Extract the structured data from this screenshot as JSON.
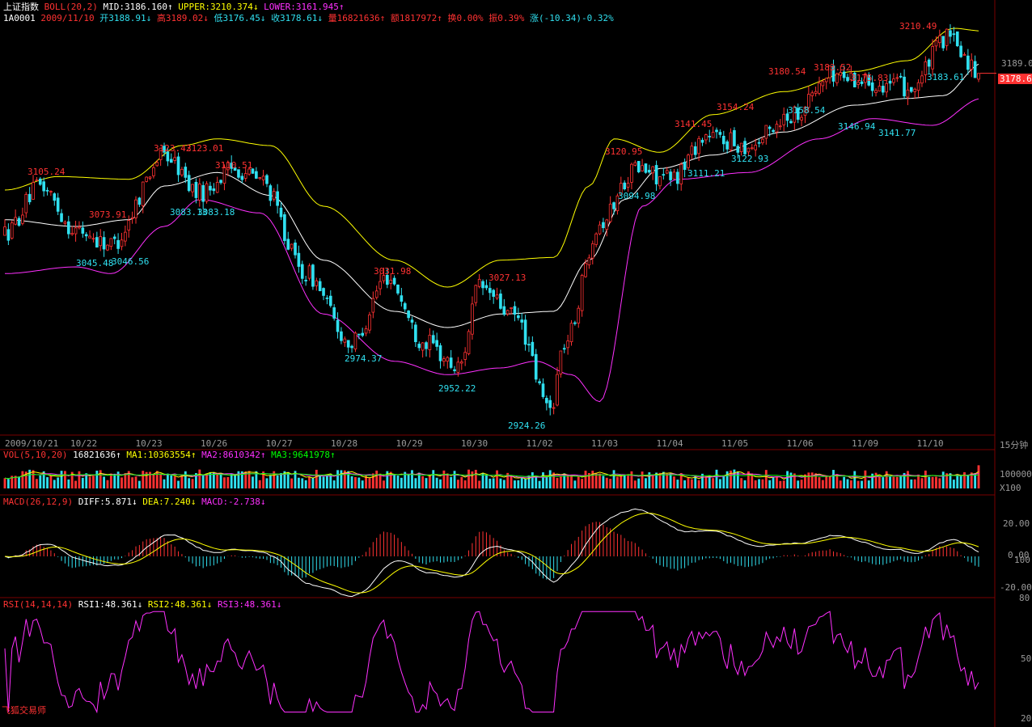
{
  "header": {
    "index_name": "上证指数",
    "boll_label": "BOLL(20,2)",
    "mid": "MID:3186.160↑",
    "upper": "UPPER:3210.374↓",
    "lower": "LOWER:3161.945↑",
    "code": "1A0001",
    "date": "2009/11/10",
    "open": "开3188.91↓",
    "high": "高3189.02↓",
    "low": "低3176.45↓",
    "close": "收3178.61↓",
    "volume": "量16821636↑",
    "amount": "额1817972↑",
    "turnover": "换0.00%",
    "amplitude": "振0.39%",
    "change": "涨(-10.34)-0.32%"
  },
  "right_axis": {
    "price_label": "3189.0",
    "current_price": "3178.6",
    "period": "15分钟",
    "vol_scale": "100000",
    "vol_unit": "X100",
    "macd_ticks": [
      "20.00",
      "0.00",
      "-20.00"
    ],
    "macd_extra": [
      "100",
      "80"
    ],
    "rsi_ticks": [
      "50",
      "20"
    ]
  },
  "date_axis": [
    "2009/10/21",
    "10/22",
    "10/23",
    "10/26",
    "10/27",
    "10/28",
    "10/29",
    "10/30",
    "11/02",
    "11/03",
    "11/04",
    "11/05",
    "11/06",
    "11/09",
    "11/10"
  ],
  "annotations_high": [
    "3105.24",
    "3073.91",
    "3123.42",
    "3123.01",
    "3110.51",
    "3031.98",
    "3027.13",
    "3120.95",
    "3141.45",
    "3154.24",
    "3180.54",
    "3183.52",
    "3175.83",
    "3210.49"
  ],
  "annotations_low": [
    "3045.48",
    "3046.56",
    "3083.13",
    "3083.18",
    "2974.37",
    "2952.22",
    "2924.26",
    "3094.98",
    "3111.21",
    "3122.93",
    "3158.54",
    "3146.94",
    "3141.77",
    "3183.61"
  ],
  "vol_header": {
    "label": "VOL(5,10,20)",
    "value": "16821636↑",
    "ma1": "MA1:10363554↑",
    "ma2": "MA2:8610342↑",
    "ma3": "MA3:9641978↑"
  },
  "macd_header": {
    "label": "MACD(26,12,9)",
    "diff": "DIFF:5.871↓",
    "dea": "DEA:7.240↓",
    "macd": "MACD:-2.738↓"
  },
  "rsi_header": {
    "label": "RSI(14,14,14)",
    "rsi1": "RSI1:48.361↓",
    "rsi2": "RSI2:48.361↓",
    "rsi3": "RSI3:48.361↓"
  },
  "footer_brand": "飞狐交易师",
  "colors": {
    "up": "#ff3232",
    "down": "#30e0f0",
    "mid": "#ffffff",
    "upper": "#ffff00",
    "lower": "#ff30ff",
    "ma1": "#ffffff",
    "ma2": "#ffff00",
    "ma3": "#ff30ff",
    "ma4": "#00ff00",
    "grid": "#7a0000",
    "axis_text": "#9a9a9a"
  },
  "chart_data": {
    "type": "candlestick",
    "title": "上证指数",
    "period": "15分钟",
    "ylim": [
      2915,
      3215
    ],
    "last_close": 3178.61,
    "anchors": [
      [
        0,
        3060
      ],
      [
        10,
        3095
      ],
      [
        20,
        3062
      ],
      [
        30,
        3052
      ],
      [
        45,
        3118
      ],
      [
        55,
        3090
      ],
      [
        65,
        3108
      ],
      [
        72,
        3100
      ],
      [
        85,
        3030
      ],
      [
        98,
        2978
      ],
      [
        108,
        3028
      ],
      [
        118,
        2980
      ],
      [
        128,
        2960
      ],
      [
        134,
        3020
      ],
      [
        144,
        2998
      ],
      [
        154,
        2930
      ],
      [
        158,
        2978
      ],
      [
        168,
        3068
      ],
      [
        178,
        3108
      ],
      [
        188,
        3100
      ],
      [
        198,
        3132
      ],
      [
        210,
        3125
      ],
      [
        222,
        3148
      ],
      [
        234,
        3178
      ],
      [
        246,
        3172
      ],
      [
        256,
        3168
      ],
      [
        266,
        3205
      ],
      [
        276,
        3178
      ]
    ],
    "boll": {
      "mid_anchors": [
        [
          0,
          3070
        ],
        [
          20,
          3065
        ],
        [
          35,
          3070
        ],
        [
          45,
          3095
        ],
        [
          60,
          3105
        ],
        [
          75,
          3088
        ],
        [
          90,
          3040
        ],
        [
          110,
          3002
        ],
        [
          125,
          2990
        ],
        [
          140,
          3000
        ],
        [
          155,
          3002
        ],
        [
          165,
          3040
        ],
        [
          175,
          3085
        ],
        [
          185,
          3108
        ],
        [
          200,
          3118
        ],
        [
          220,
          3135
        ],
        [
          240,
          3155
        ],
        [
          255,
          3160
        ],
        [
          265,
          3162
        ],
        [
          276,
          3186
        ]
      ],
      "upper_anchors": [
        [
          0,
          3092
        ],
        [
          15,
          3102
        ],
        [
          35,
          3100
        ],
        [
          50,
          3125
        ],
        [
          60,
          3130
        ],
        [
          75,
          3125
        ],
        [
          90,
          3080
        ],
        [
          110,
          3040
        ],
        [
          125,
          3020
        ],
        [
          140,
          3040
        ],
        [
          155,
          3042
        ],
        [
          165,
          3095
        ],
        [
          172,
          3130
        ],
        [
          185,
          3120
        ],
        [
          200,
          3148
        ],
        [
          220,
          3165
        ],
        [
          240,
          3180
        ],
        [
          255,
          3188
        ],
        [
          268,
          3212
        ],
        [
          276,
          3210
        ]
      ],
      "lower_anchors": [
        [
          0,
          3030
        ],
        [
          20,
          3035
        ],
        [
          30,
          3030
        ],
        [
          45,
          3065
        ],
        [
          55,
          3085
        ],
        [
          72,
          3075
        ],
        [
          90,
          3000
        ],
        [
          110,
          2965
        ],
        [
          125,
          2955
        ],
        [
          140,
          2960
        ],
        [
          150,
          2965
        ],
        [
          160,
          2955
        ],
        [
          168,
          2935
        ],
        [
          180,
          3080
        ],
        [
          190,
          3100
        ],
        [
          210,
          3105
        ],
        [
          230,
          3130
        ],
        [
          245,
          3145
        ],
        [
          262,
          3140
        ],
        [
          276,
          3160
        ]
      ]
    }
  }
}
